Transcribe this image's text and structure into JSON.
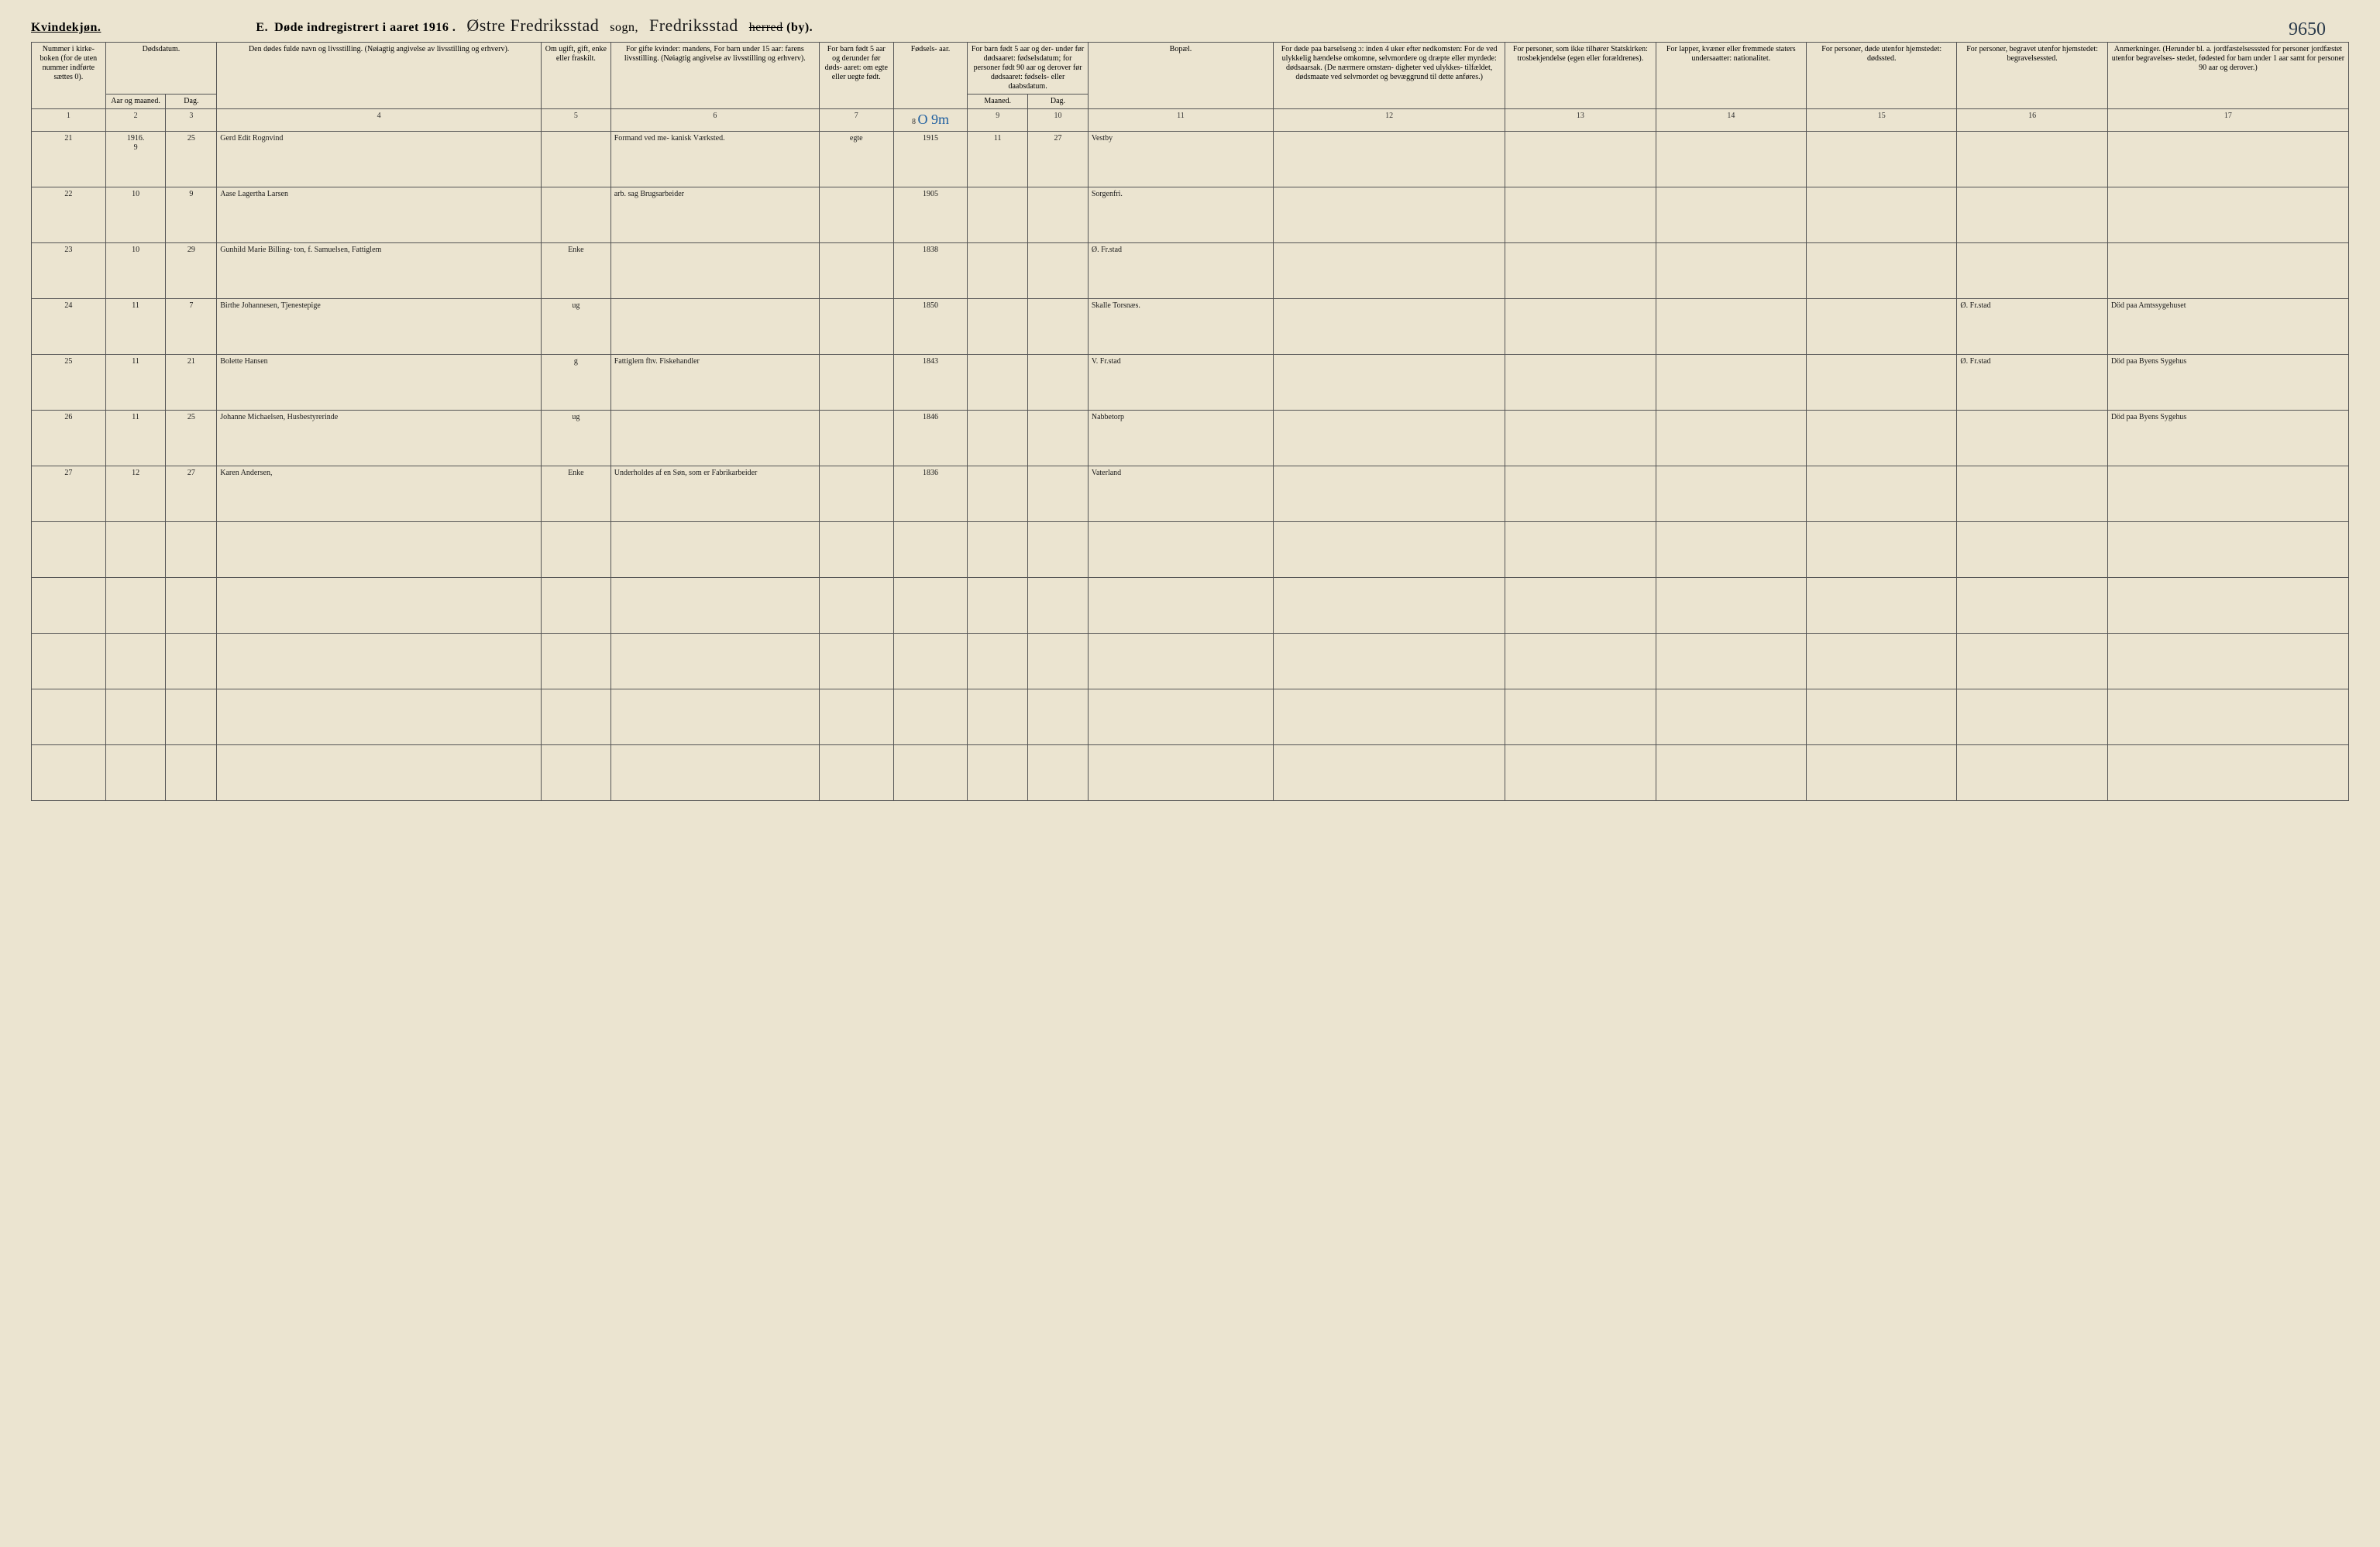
{
  "corner_number": "9650",
  "header": {
    "gender": "Kvindekjøn.",
    "section": "E.",
    "title_a": "Døde indregistrert i aaret 1916 .",
    "parish_hand": "Østre Fredriksstad",
    "sogn_label": "sogn,",
    "region_hand": "Fredriksstad",
    "herred_struck": "herred",
    "by_label": "(by)."
  },
  "columns": {
    "h1": "Nummer i kirke- boken (for de uten nummer indførte sættes 0).",
    "h2top": "Dødsdatum.",
    "h2a": "Aar og maaned.",
    "h2b": "Dag.",
    "h4": "Den dødes fulde navn og livsstilling. (Nøiagtig angivelse av livsstilling og erhverv).",
    "h5": "Om ugift, gift, enke eller fraskilt.",
    "h6": "For gifte kvinder: mandens, For barn under 15 aar: farens livsstilling. (Nøiagtig angivelse av livsstilling og erhverv).",
    "h7": "For barn født 5 aar og derunder før døds- aaret: om egte eller uegte født.",
    "h8": "Fødsels- aar.",
    "h9top": "For barn født 5 aar og der- under før dødsaaret: fødselsdatum; for personer født 90 aar og derover før dødsaaret: fødsels- eller daabsdatum.",
    "h9a": "Maaned.",
    "h9b": "Dag.",
    "h11": "Bopæl.",
    "h12": "For døde paa barselseng ɔ: inden 4 uker efter nedkomsten: For de ved ulykkelig hændelse omkomne, selvmordere og dræpte eller myrdede: dødsaarsak. (De nærmere omstæn- digheter ved ulykkes- tilfældet, dødsmaate ved selvmordet og bevæggrund til dette anføres.)",
    "h13": "For personer, som ikke tilhører Statskirken: trosbekjendelse (egen eller forældrenes).",
    "h14": "For lapper, kvæner eller fremmede staters undersaatter: nationalitet.",
    "h15": "For personer, døde utenfor hjemstedet: dødssted.",
    "h16": "For personer, begravet utenfor hjemstedet: begravelsessted.",
    "h17": "Anmerkninger. (Herunder bl. a. jordfæstelsesssted for personer jordfæstet utenfor begravelses- stedet, fødested for barn under 1 aar samt for personer 90 aar og derover.)"
  },
  "colnums": [
    "1",
    "2",
    "3",
    "4",
    "5",
    "6",
    "7",
    "8",
    "9",
    "10",
    "11",
    "12",
    "13",
    "14",
    "15",
    "16",
    "17"
  ],
  "blue_mark": "O 9m",
  "year_prefix": "1916.",
  "rows": [
    {
      "num": "21",
      "mon": "9",
      "day": "25",
      "name": "Gerd Edit Rognvind",
      "stat": "",
      "occ": "Formand ved me- kanisk Værksted.",
      "legit": "egte",
      "fyear": "1915",
      "fmon": "11",
      "fday": "27",
      "bopel": "Vestby",
      "c12": "",
      "c13": "",
      "c14": "",
      "c15": "",
      "c16": "",
      "c17": ""
    },
    {
      "num": "22",
      "mon": "10",
      "day": "9",
      "name": "Aase Lagertha Larsen",
      "stat": "",
      "occ": "arb. sag Brugsarbeider",
      "legit": "",
      "fyear": "1905",
      "fmon": "",
      "fday": "",
      "bopel": "Sorgenfri.",
      "c12": "",
      "c13": "",
      "c14": "",
      "c15": "",
      "c16": "",
      "c17": ""
    },
    {
      "num": "23",
      "mon": "10",
      "day": "29",
      "name": "Gunhild Marie Billing- ton, f. Samuelsen, Fattiglem",
      "stat": "Enke",
      "occ": "",
      "legit": "",
      "fyear": "1838",
      "fmon": "",
      "fday": "",
      "bopel": "Ø. Fr.stad",
      "c12": "",
      "c13": "",
      "c14": "",
      "c15": "",
      "c16": "",
      "c17": ""
    },
    {
      "num": "24",
      "mon": "11",
      "day": "7",
      "name": "Birthe Johannesen, Tjenestepige",
      "stat": "ug",
      "occ": "",
      "legit": "",
      "fyear": "1850",
      "fmon": "",
      "fday": "",
      "bopel": "Skalle Torsnæs.",
      "c12": "",
      "c13": "",
      "c14": "",
      "c15": "",
      "c16": "Ø. Fr.stad",
      "c17": "Död paa Amtssygehuset"
    },
    {
      "num": "25",
      "mon": "11",
      "day": "21",
      "name": "Bolette Hansen",
      "stat": "g",
      "occ": "Fattiglem fhv. Fiskehandler",
      "legit": "",
      "fyear": "1843",
      "fmon": "",
      "fday": "",
      "bopel": "V. Fr.stad",
      "c12": "",
      "c13": "",
      "c14": "",
      "c15": "",
      "c16": "Ø. Fr.stad",
      "c17": "Död paa Byens Sygehus"
    },
    {
      "num": "26",
      "mon": "11",
      "day": "25",
      "name": "Johanne Michaelsen, Husbestyrerinde",
      "stat": "ug",
      "occ": "",
      "legit": "",
      "fyear": "1846",
      "fmon": "",
      "fday": "",
      "bopel": "Nabbetorp",
      "c12": "",
      "c13": "",
      "c14": "",
      "c15": "",
      "c16": "",
      "c17": "Död paa Byens Sygehus"
    },
    {
      "num": "27",
      "mon": "12",
      "day": "27",
      "name": "Karen Andersen,",
      "stat": "Enke",
      "occ": "Underholdes af en Søn, som er Fabrikarbeider",
      "legit": "",
      "fyear": "1836",
      "fmon": "",
      "fday": "",
      "bopel": "Vaterland",
      "c12": "",
      "c13": "",
      "c14": "",
      "c15": "",
      "c16": "",
      "c17": ""
    }
  ]
}
